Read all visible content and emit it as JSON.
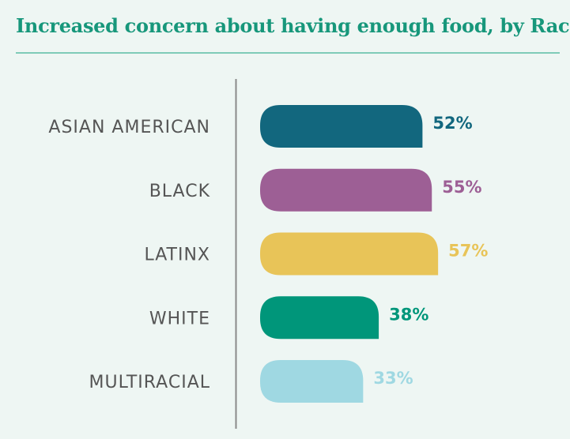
{
  "title": "Increased concern about having enough food, by Race",
  "chart_data": {
    "type": "bar",
    "orientation": "horizontal",
    "title": "Increased concern about having enough food, by Race",
    "xlabel": "",
    "ylabel": "",
    "grid": false,
    "legend": "none",
    "categories": [
      "ASIAN AMERICAN",
      "BLACK",
      "LATINX",
      "WHITE",
      "MULTIRACIAL"
    ],
    "values": [
      52,
      55,
      57,
      38,
      33
    ],
    "value_labels": [
      "52%",
      "55%",
      "57%",
      "38%",
      "33%"
    ],
    "colors": [
      "#12677e",
      "#9d5f95",
      "#e8c458",
      "#00967a",
      "#9fd8e2"
    ]
  }
}
